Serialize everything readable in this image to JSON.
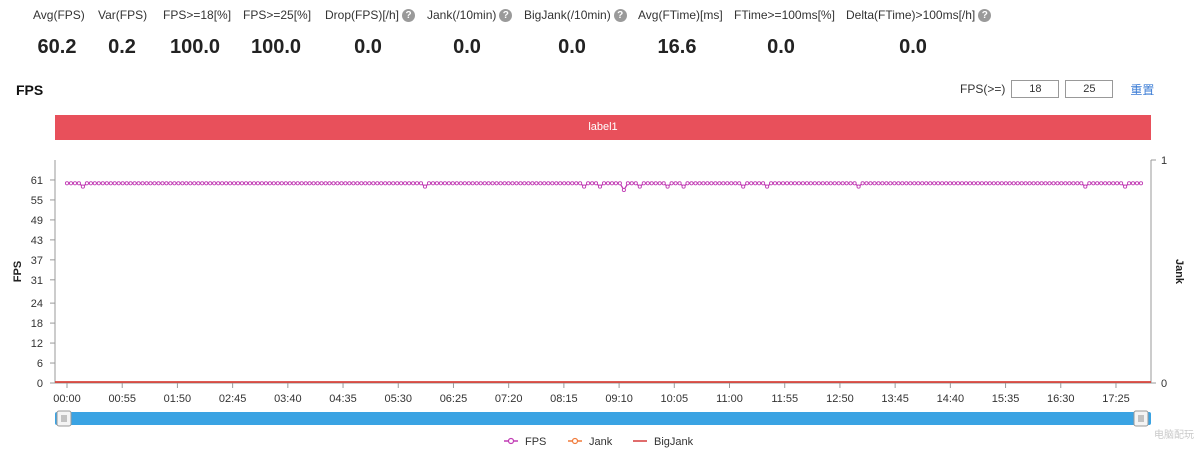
{
  "metrics": [
    {
      "label": "Avg(FPS)",
      "value": "60.2",
      "help": false
    },
    {
      "label": "Var(FPS)",
      "value": "0.2",
      "help": false
    },
    {
      "label": "FPS>=18[%]",
      "value": "100.0",
      "help": false
    },
    {
      "label": "FPS>=25[%]",
      "value": "100.0",
      "help": false
    },
    {
      "label": "Drop(FPS)[/h]",
      "value": "0.0",
      "help": true
    },
    {
      "label": "Jank(/10min)",
      "value": "0.0",
      "help": true
    },
    {
      "label": "BigJank(/10min)",
      "value": "0.0",
      "help": true
    },
    {
      "label": "Avg(FTime)[ms]",
      "value": "16.6",
      "help": false
    },
    {
      "label": "FTime>=100ms[%]",
      "value": "0.0",
      "help": false
    },
    {
      "label": "Delta(FTime)>100ms[/h]",
      "value": "0.0",
      "help": true
    }
  ],
  "help_glyph": "?",
  "chart": {
    "title": "FPS",
    "threshold_label": "FPS(>=)",
    "threshold_values": [
      "18",
      "25"
    ],
    "reset_label": "重置",
    "band_label": "label1"
  },
  "chart_data": {
    "type": "line",
    "y_left_label": "FPS",
    "y_right_label": "Jank",
    "y_left_ticks": [
      "0",
      "6",
      "12",
      "18",
      "24",
      "31",
      "37",
      "43",
      "49",
      "55",
      "61"
    ],
    "y_left_range": [
      0,
      67
    ],
    "y_right_ticks": [
      "0",
      "1"
    ],
    "y_right_range": [
      0,
      1
    ],
    "x_ticks": [
      "00:00",
      "00:55",
      "01:50",
      "02:45",
      "03:40",
      "04:35",
      "05:30",
      "06:25",
      "07:20",
      "08:15",
      "09:10",
      "10:05",
      "11:00",
      "11:55",
      "12:50",
      "13:45",
      "14:40",
      "15:35",
      "16:30",
      "17:25"
    ],
    "x_range_seconds": [
      0,
      1080
    ],
    "series": [
      {
        "name": "FPS",
        "axis": "left",
        "color": "#c13bb4",
        "baseline": 60,
        "dips": [
          [
            17,
            59
          ],
          [
            90,
            59
          ],
          [
            214,
            58
          ],
          [
            282,
            59
          ],
          [
            330,
            59
          ],
          [
            360,
            59
          ],
          [
            442,
            59
          ],
          [
            450,
            59
          ],
          [
            520,
            59
          ],
          [
            535,
            59
          ],
          [
            560,
            58
          ],
          [
            575,
            59
          ],
          [
            603,
            59
          ],
          [
            620,
            59
          ],
          [
            680,
            59
          ],
          [
            705,
            59
          ],
          [
            762,
            59
          ],
          [
            795,
            59
          ],
          [
            1023,
            59
          ],
          [
            1063,
            59
          ]
        ]
      },
      {
        "name": "Jank",
        "axis": "right",
        "color": "#f07b3b",
        "constant": 0
      },
      {
        "name": "BigJank",
        "axis": "right",
        "color": "#d63b3b",
        "constant": 0
      }
    ],
    "legend": [
      "FPS",
      "Jank",
      "BigJank"
    ]
  },
  "zoom_slider": {
    "start": 0,
    "end": 100
  },
  "colors": {
    "accent": "#3a7bd5",
    "band": "#e8505b",
    "slider": "#3aa3e3"
  },
  "watermark": "电脑配玩"
}
